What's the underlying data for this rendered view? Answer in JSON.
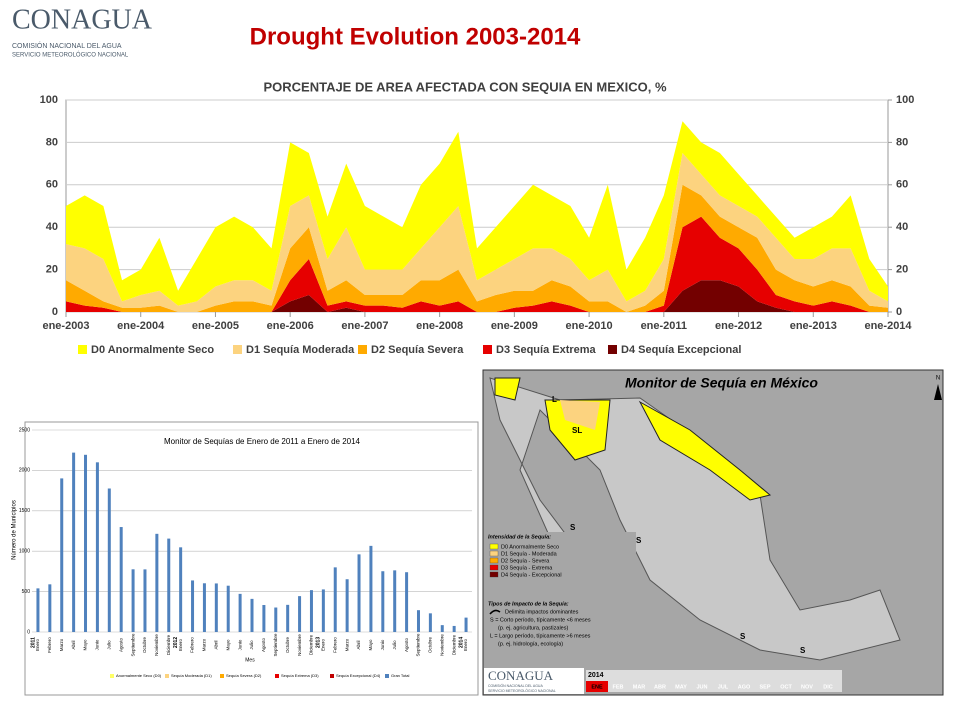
{
  "header": {
    "logo": "CONAGUA",
    "org": "COMISIÓN NACIONAL DEL AGUA",
    "service": "SERVICIO METEOROLÓGICO NACIONAL",
    "title": "Drought Evolution 2003-2014"
  },
  "chart_data": [
    {
      "type": "area",
      "stacked": true,
      "title": "PORCENTAJE DE AREA AFECTADA CON SEQUIA EN MEXICO, %",
      "x": [
        2003,
        2003.25,
        2003.5,
        2003.75,
        2004,
        2004.25,
        2004.5,
        2004.75,
        2005,
        2005.25,
        2005.5,
        2005.75,
        2006,
        2006.25,
        2006.5,
        2006.75,
        2007,
        2007.25,
        2007.5,
        2007.75,
        2008,
        2008.25,
        2008.5,
        2008.75,
        2009,
        2009.25,
        2009.5,
        2009.75,
        2010,
        2010.25,
        2010.5,
        2010.75,
        2011,
        2011.25,
        2011.5,
        2011.75,
        2012,
        2012.25,
        2012.5,
        2012.75,
        2013,
        2013.25,
        2013.5,
        2013.75,
        2014
      ],
      "xlim": [
        2003,
        2014
      ],
      "xticks": [
        {
          "value": 2003,
          "label": "ene-2003"
        },
        {
          "value": 2004,
          "label": "ene-2004"
        },
        {
          "value": 2005,
          "label": "ene-2005"
        },
        {
          "value": 2006,
          "label": "ene-2006"
        },
        {
          "value": 2007,
          "label": "ene-2007"
        },
        {
          "value": 2008,
          "label": "ene-2008"
        },
        {
          "value": 2009,
          "label": "ene-2009"
        },
        {
          "value": 2010,
          "label": "ene-2010"
        },
        {
          "value": 2011,
          "label": "ene-2011"
        },
        {
          "value": 2012,
          "label": "ene-2012"
        },
        {
          "value": 2013,
          "label": "ene-2013"
        },
        {
          "value": 2014,
          "label": "ene-2014"
        }
      ],
      "ylim": [
        0,
        100
      ],
      "yticks": [
        0,
        20,
        40,
        60,
        80,
        100
      ],
      "y2lim": [
        0,
        100
      ],
      "y2ticks": [
        0,
        20,
        40,
        60,
        80,
        100
      ],
      "grid": true,
      "legend": "bottom",
      "series": [
        {
          "name": "D0 Anormalmente Seco",
          "color": "#ffff00",
          "values": [
            18,
            25,
            25,
            10,
            12,
            25,
            7,
            20,
            28,
            30,
            25,
            20,
            30,
            20,
            20,
            30,
            30,
            25,
            20,
            30,
            30,
            35,
            15,
            20,
            25,
            30,
            25,
            25,
            20,
            40,
            15,
            25,
            30,
            15,
            15,
            20,
            15,
            10,
            10,
            10,
            15,
            15,
            25,
            15,
            7
          ]
        },
        {
          "name": "D1 Sequía Moderada",
          "color": "#fcd37f",
          "values": [
            17,
            20,
            20,
            3,
            6,
            7,
            3,
            5,
            9,
            10,
            10,
            7,
            20,
            15,
            15,
            25,
            12,
            12,
            12,
            15,
            25,
            30,
            10,
            12,
            15,
            20,
            15,
            13,
            10,
            15,
            5,
            7,
            15,
            15,
            10,
            10,
            10,
            10,
            15,
            10,
            13,
            15,
            18,
            7,
            3
          ]
        },
        {
          "name": "D2 Sequía Severa",
          "color": "#ffaa00",
          "values": [
            10,
            7,
            3,
            2,
            2,
            3,
            0,
            0,
            3,
            5,
            5,
            3,
            15,
            15,
            7,
            10,
            5,
            5,
            6,
            10,
            12,
            15,
            5,
            8,
            8,
            7,
            10,
            9,
            5,
            5,
            0,
            3,
            7,
            20,
            10,
            10,
            10,
            15,
            12,
            10,
            9,
            10,
            9,
            3,
            2
          ]
        },
        {
          "name": "D3 Sequía Extrema",
          "color": "#e60000",
          "values": [
            5,
            3,
            2,
            0,
            0,
            0,
            0,
            0,
            0,
            0,
            0,
            0,
            10,
            17,
            3,
            3,
            3,
            3,
            2,
            5,
            3,
            5,
            0,
            0,
            2,
            3,
            5,
            3,
            0,
            0,
            0,
            0,
            3,
            30,
            30,
            20,
            18,
            15,
            6,
            5,
            3,
            5,
            3,
            0,
            0
          ]
        },
        {
          "name": "D4 Sequía Excepcional",
          "color": "#730000",
          "values": [
            0,
            0,
            0,
            0,
            0,
            0,
            0,
            0,
            0,
            0,
            0,
            0,
            5,
            8,
            0,
            2,
            0,
            0,
            0,
            0,
            0,
            0,
            0,
            0,
            0,
            0,
            0,
            0,
            0,
            0,
            0,
            0,
            0,
            10,
            15,
            15,
            12,
            5,
            2,
            0,
            0,
            0,
            0,
            0,
            0
          ]
        }
      ]
    },
    {
      "type": "bar",
      "title": "Monitor de Sequías de Enero de 2011 a Enero de 2014",
      "ylabel": "Número de Municipios",
      "xlabel": "Mes",
      "categories": [
        "Enero",
        "Febrero",
        "Marzo",
        "Abril",
        "Mayo",
        "Junio",
        "Julio",
        "Agosto",
        "Septiembre",
        "Octubre",
        "Noviembre",
        "Diciembre",
        "Enero",
        "Febrero",
        "Marzo",
        "Abril",
        "Mayo",
        "Junio",
        "Julio",
        "Agosto",
        "Septiembre",
        "Octubre",
        "Noviembre",
        "Diciembre",
        "Enero",
        "Febrero",
        "Marzo",
        "Abril",
        "Mayo",
        "Junio",
        "Julio",
        "Agosto",
        "Septiembre",
        "Octubre",
        "Noviembre",
        "Diciembre",
        "Enero"
      ],
      "years": [
        "2011",
        "2012",
        "2013",
        "2014"
      ],
      "ylim": [
        0,
        2500
      ],
      "yticks": [
        0,
        500,
        1000,
        1500,
        2000,
        2500
      ],
      "grid": true,
      "legend": [
        "Anormalmente Seco (D0)",
        "Sequía Moderada (D1)",
        "Sequía Severa (D2)",
        "Sequía Extrema (D3)",
        "Sequía Excepcional (D4)",
        "Gran Total"
      ],
      "series": [
        {
          "name": "Gran Total",
          "color": "#4f81bd",
          "values": [
            540,
            590,
            1901,
            2220,
            2193,
            2100,
            1776,
            1299,
            776,
            775,
            1215,
            1156,
            1048,
            638,
            603,
            601,
            573,
            472,
            410,
            334,
            303,
            336,
            444,
            518,
            527,
            800,
            653,
            961,
            1066,
            752,
            763,
            740,
            270,
            231,
            85,
            75,
            178
          ]
        }
      ]
    }
  ],
  "map": {
    "logo": "CONAGUA",
    "org": "COMISIÓN NACIONAL DEL AGUA",
    "service": "SERVICIO METEOROLÓGICO NACIONAL",
    "title": "Monitor de Sequía en México",
    "north": "N",
    "legend_title": "Intensidad de la Sequía:",
    "levels": [
      "D0 Anormalmente Seco",
      "D1 Sequía - Moderada",
      "D2 Sequía - Severa",
      "D3 Sequía - Extrema",
      "D4 Sequía - Excepcional"
    ],
    "impact_title": "Tipos de Impacto de la Sequía:",
    "impacts": [
      "Delimita impactos dominantes",
      "S = Corto período, típicamente <6 meses",
      "(p. ej. agricultura, pastizales)",
      "L = Largo período, típicamente >6 meses",
      "(p. ej. hidrología, ecología)"
    ],
    "labels": [
      "SL",
      "L",
      "S"
    ],
    "year": "2014",
    "months": [
      "ENE",
      "FEB",
      "MAR",
      "ABR",
      "MAY",
      "JUN",
      "JUL",
      "AGO",
      "SEP",
      "OCT",
      "NOV",
      "DIC"
    ]
  }
}
